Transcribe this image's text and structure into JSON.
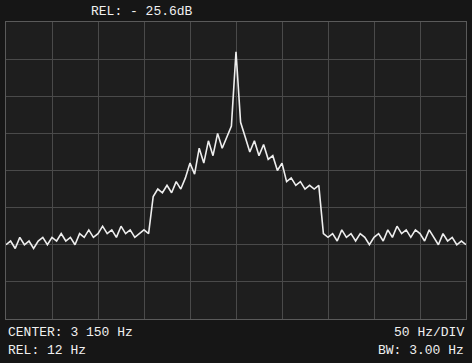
{
  "chart_data": {
    "type": "line",
    "color": "#eeeeee",
    "annotations": [
      "REL: - 25.6dB",
      "CENTER: 3 150 Hz",
      "REL: 12 Hz",
      "50 Hz/DIV",
      "BW: 3.00 Hz"
    ],
    "x": [
      2900,
      2905,
      2910,
      2915,
      2920,
      2925,
      2930,
      2935,
      2940,
      2945,
      2950,
      2955,
      2960,
      2965,
      2970,
      2975,
      2980,
      2985,
      2990,
      2995,
      3000,
      3005,
      3010,
      3015,
      3020,
      3025,
      3030,
      3035,
      3040,
      3045,
      3050,
      3055,
      3060,
      3065,
      3070,
      3075,
      3080,
      3085,
      3090,
      3095,
      3100,
      3105,
      3110,
      3115,
      3120,
      3125,
      3130,
      3135,
      3140,
      3145,
      3150,
      3155,
      3160,
      3165,
      3170,
      3175,
      3180,
      3185,
      3190,
      3195,
      3200,
      3205,
      3210,
      3215,
      3220,
      3225,
      3230,
      3235,
      3240,
      3245,
      3250,
      3255,
      3260,
      3265,
      3270,
      3275,
      3280,
      3285,
      3290,
      3295,
      3300,
      3305,
      3310,
      3315,
      3320,
      3325,
      3330,
      3335,
      3340,
      3345,
      3350,
      3355,
      3360,
      3365,
      3370,
      3375,
      3380,
      3385,
      3390,
      3395,
      3400
    ],
    "values": [
      -60,
      -59,
      -61,
      -58,
      -60,
      -59,
      -61,
      -59,
      -58,
      -60,
      -58,
      -59,
      -57,
      -59,
      -58,
      -60,
      -57,
      -58,
      -56,
      -58,
      -57,
      -55,
      -57,
      -56,
      -58,
      -55,
      -57,
      -56,
      -58,
      -57,
      -56,
      -57,
      -47,
      -45,
      -46,
      -44,
      -46,
      -43,
      -45,
      -42,
      -38,
      -41,
      -34,
      -38,
      -32,
      -36,
      -30,
      -34,
      -31,
      -28,
      -8,
      -27,
      -31,
      -35,
      -32,
      -36,
      -33,
      -37,
      -36,
      -40,
      -38,
      -43,
      -42,
      -44,
      -43,
      -45,
      -44,
      -45,
      -44,
      -57,
      -58,
      -57,
      -59,
      -56,
      -58,
      -57,
      -59,
      -57,
      -58,
      -60,
      -58,
      -57,
      -59,
      -56,
      -58,
      -55,
      -57,
      -56,
      -58,
      -56,
      -57,
      -59,
      -56,
      -58,
      -60,
      -57,
      -59,
      -58,
      -60,
      -59,
      -60
    ],
    "xlim": [
      2900,
      3400
    ],
    "xticks": [
      2900,
      2950,
      3000,
      3050,
      3100,
      3150,
      3200,
      3250,
      3300,
      3350,
      3400
    ],
    "ylim": [
      -80,
      0
    ],
    "yticks": [
      -80,
      -70,
      -60,
      -50,
      -40,
      -30,
      -20,
      -10,
      0
    ],
    "grid": true,
    "tick_labels": false
  }
}
